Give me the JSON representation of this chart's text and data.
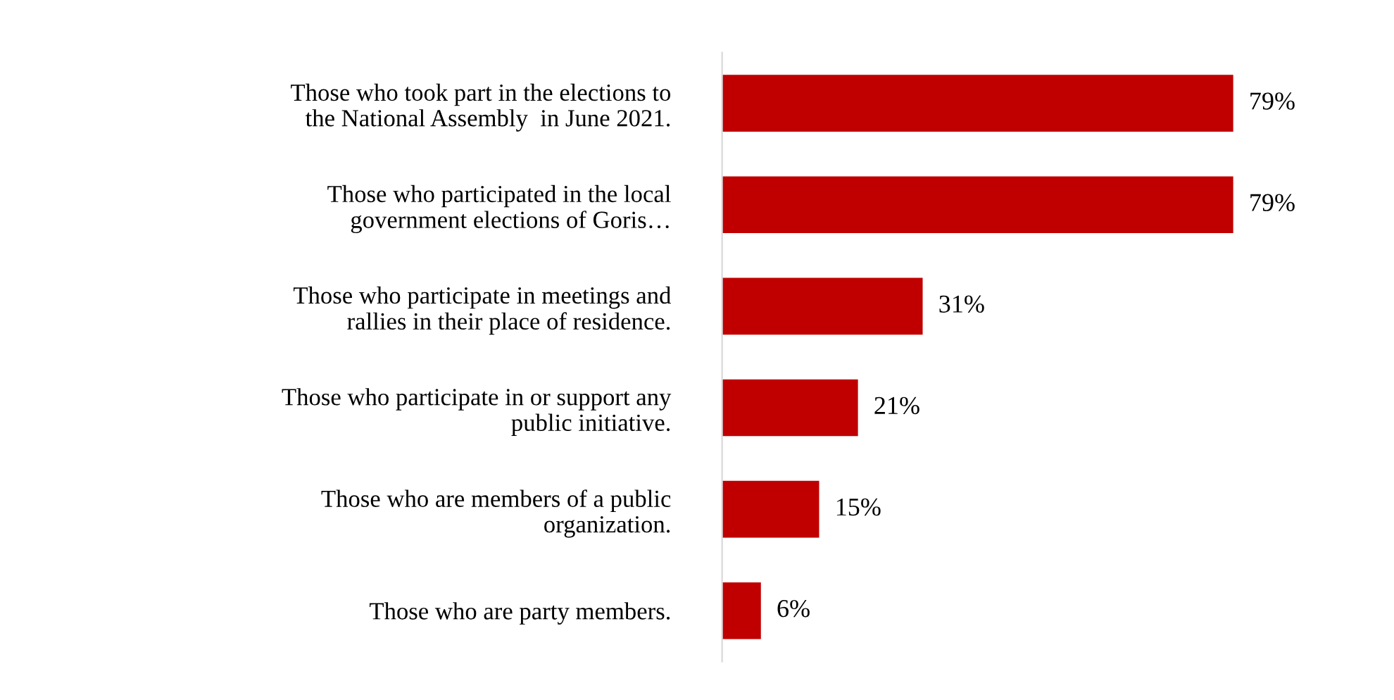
{
  "chart_data": {
    "type": "bar",
    "orientation": "horizontal",
    "categories": [
      "Those who took part in the elections to\nthe National Assembly  in June 2021.",
      "Those who participated in the local\ngovernment elections of Goris…",
      "Those who participate in meetings and\nrallies in their place of residence.",
      "Those who participate in or support any\npublic initiative.",
      "Those who are members of a public\norganization.",
      "Those who are party members."
    ],
    "values": [
      79,
      79,
      31,
      21,
      15,
      6
    ],
    "value_labels": [
      "79%",
      "79%",
      "31%",
      "21%",
      "15%",
      "6%"
    ],
    "color": "#c00000",
    "tick_labels": "y",
    "grid": false,
    "legend": false
  }
}
